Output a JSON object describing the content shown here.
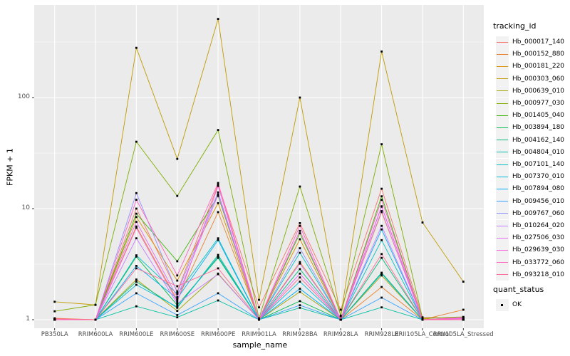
{
  "y_axis": {
    "label": "FPKM + 1",
    "ticks": [
      "100",
      "10",
      "1"
    ],
    "tick_values": [
      100,
      10,
      1
    ],
    "scale": "log10"
  },
  "x_axis": {
    "label": "sample_name"
  },
  "legend": {
    "tracking_title": "tracking_id",
    "quant_title": "quant_status",
    "quant_items": [
      {
        "label": "OK",
        "shape": "filled-square",
        "color": "#000000"
      }
    ]
  },
  "colors": {
    "panel_bg": "#ebebeb",
    "grid": "#ffffff",
    "tick_text": "#4d4d4d",
    "point": "#000000",
    "legend_key_bg": "#f2f2f2"
  },
  "chart_data": {
    "type": "line",
    "title": "",
    "xlabel": "sample_name",
    "ylabel": "FPKM + 1",
    "yscale": "log10",
    "ylim": [
      1,
      650
    ],
    "grid": true,
    "legend_position": "right",
    "point_marker": "black square (quant_status = OK)",
    "categories": [
      "PB350LA",
      "RRIM600LA",
      "RRIM600LE",
      "RRIM600SE",
      "RRIM600PE",
      "RRIM901LA",
      "RRIM928BA",
      "RRIM928LA",
      "RRIM928LE",
      "RRII105LA_Control",
      "RRII105LA_Stressed"
    ],
    "series": [
      {
        "name": "Hb_000017_140",
        "color": "#F8766D",
        "values": [
          1.02,
          1.0,
          10.0,
          1.8,
          16.5,
          1.29,
          7.4,
          1.23,
          15.1,
          1.05,
          1.04
        ]
      },
      {
        "name": "Hb_000152_880",
        "color": "#EA8331",
        "values": [
          1.03,
          1.0,
          6.9,
          1.5,
          9.3,
          1.0,
          3.3,
          1.0,
          1.97,
          1.0,
          1.23
        ]
      },
      {
        "name": "Hb_000181_220",
        "color": "#D89000",
        "values": [
          1.0,
          1.0,
          8.4,
          2.25,
          11.2,
          1.0,
          5.3,
          1.0,
          9.3,
          1.02,
          1.0
        ]
      },
      {
        "name": "Hb_000303_060",
        "color": "#C09B00",
        "values": [
          1.45,
          1.36,
          280,
          28,
          510,
          1.51,
          100,
          1.07,
          260,
          7.5,
          2.2
        ]
      },
      {
        "name": "Hb_000639_010",
        "color": "#A3A500",
        "values": [
          1.0,
          1.0,
          2.3,
          1.2,
          2.6,
          1.0,
          1.78,
          1.0,
          2.5,
          1.0,
          1.0
        ]
      },
      {
        "name": "Hb_000977_030",
        "color": "#7CAE00",
        "values": [
          1.19,
          1.36,
          40,
          13,
          51,
          1.03,
          15.8,
          1.09,
          38,
          1.03,
          1.06
        ]
      },
      {
        "name": "Hb_001405_040",
        "color": "#39B600",
        "values": [
          1.0,
          1.0,
          9.0,
          3.36,
          13.0,
          1.0,
          6.0,
          1.0,
          12.9,
          1.0,
          1.0
        ]
      },
      {
        "name": "Hb_003894_180",
        "color": "#00BB4E",
        "values": [
          1.0,
          1.0,
          3.7,
          1.35,
          3.6,
          1.0,
          1.47,
          1.0,
          2.65,
          1.0,
          1.0
        ]
      },
      {
        "name": "Hb_004162_140",
        "color": "#00BF7D",
        "values": [
          1.0,
          1.0,
          2.2,
          1.28,
          3.83,
          1.0,
          2.85,
          1.0,
          3.6,
          1.0,
          1.05
        ]
      },
      {
        "name": "Hb_004804_010",
        "color": "#00C1A3",
        "values": [
          1.0,
          1.0,
          1.32,
          1.05,
          1.49,
          1.0,
          1.28,
          1.0,
          1.29,
          1.0,
          1.0
        ]
      },
      {
        "name": "Hb_007101_140",
        "color": "#00BFC4",
        "values": [
          1.0,
          1.0,
          3.8,
          1.7,
          5.4,
          1.0,
          4.0,
          1.0,
          5.2,
          1.0,
          1.0
        ]
      },
      {
        "name": "Hb_007370_010",
        "color": "#00BAE0",
        "values": [
          1.0,
          1.0,
          2.06,
          1.3,
          3.7,
          1.0,
          2.2,
          1.0,
          2.6,
          1.0,
          1.0
        ]
      },
      {
        "name": "Hb_007894_080",
        "color": "#00B0F6",
        "values": [
          1.0,
          1.0,
          3.05,
          1.55,
          5.2,
          1.0,
          1.9,
          1.0,
          6.5,
          1.0,
          1.0
        ]
      },
      {
        "name": "Hb_009456_010",
        "color": "#35A2FF",
        "values": [
          1.0,
          1.0,
          1.73,
          1.1,
          1.73,
          1.0,
          1.35,
          1.0,
          1.58,
          1.0,
          1.0
        ]
      },
      {
        "name": "Hb_009767_060",
        "color": "#9590FF",
        "values": [
          1.0,
          1.0,
          13.8,
          1.75,
          14.0,
          1.0,
          4.4,
          1.0,
          10.4,
          1.0,
          1.0
        ]
      },
      {
        "name": "Hb_010264_020",
        "color": "#C77CFF",
        "values": [
          1.0,
          1.0,
          5.4,
          1.4,
          2.57,
          1.0,
          3.2,
          1.0,
          7.0,
          1.0,
          1.0
        ]
      },
      {
        "name": "Hb_027506_030",
        "color": "#E76BF3",
        "values": [
          1.0,
          1.0,
          7.6,
          1.6,
          13.4,
          1.0,
          2.6,
          1.0,
          9.5,
          1.0,
          1.02
        ]
      },
      {
        "name": "Hb_029639_030",
        "color": "#FA62DB",
        "values": [
          1.0,
          1.0,
          6.7,
          1.45,
          16.0,
          1.0,
          6.3,
          1.0,
          10.5,
          1.0,
          1.03
        ]
      },
      {
        "name": "Hb_033772_060",
        "color": "#FF62BC",
        "values": [
          1.0,
          1.0,
          12.0,
          2.5,
          17.0,
          1.0,
          7.0,
          1.0,
          12.0,
          1.0,
          1.05
        ]
      },
      {
        "name": "Hb_093218_010",
        "color": "#FF6A98",
        "values": [
          1.02,
          1.0,
          2.9,
          2.0,
          2.9,
          1.0,
          2.4,
          1.0,
          3.9,
          1.0,
          1.0
        ]
      }
    ]
  }
}
